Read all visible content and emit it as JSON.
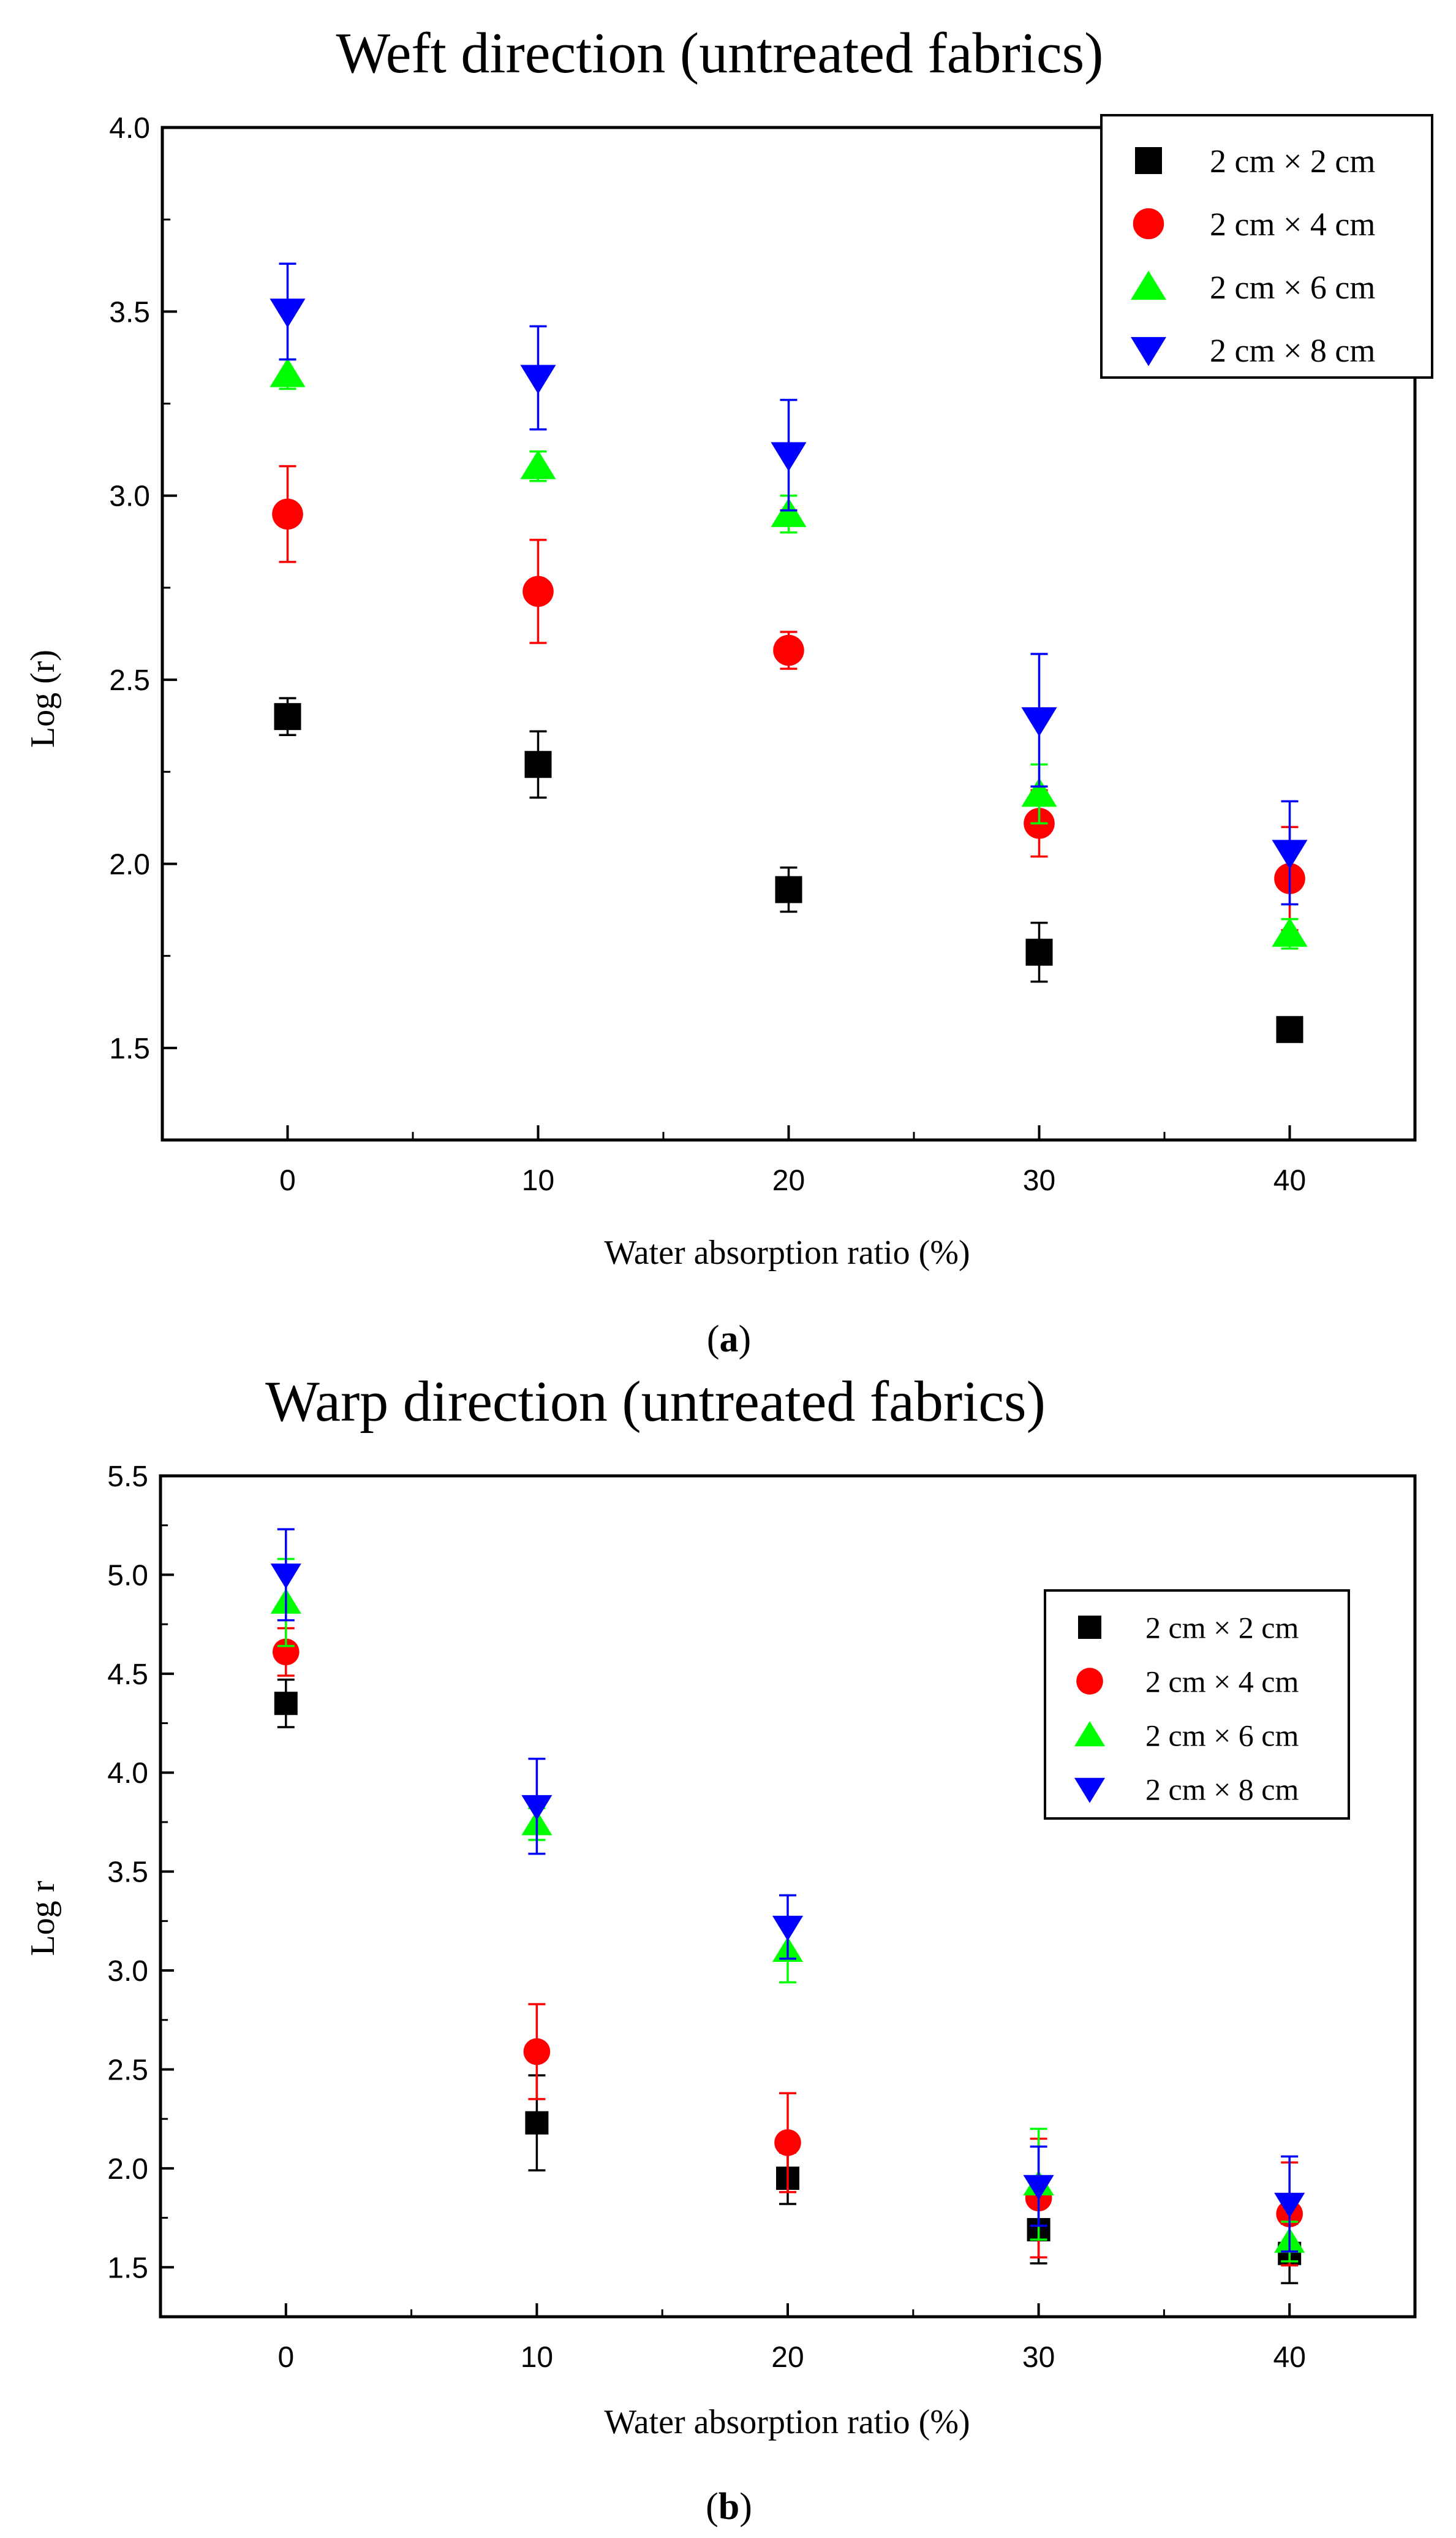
{
  "chart_data": [
    {
      "type": "scatter",
      "title": "Weft direction (untreated fabrics)",
      "xlabel": "Water absorption ratio (%)",
      "ylabel": "Log (r)",
      "caption_letter": "a",
      "x": [
        0,
        10,
        20,
        30,
        40
      ],
      "xlim": [
        -5,
        45
      ],
      "ylim": [
        1.25,
        4.0
      ],
      "xticks": [
        "0",
        "10",
        "20",
        "30",
        "40"
      ],
      "yticks": [
        "1.5",
        "2.0",
        "2.5",
        "3.0",
        "3.5",
        "4.0"
      ],
      "legend_position": "top-right",
      "series": [
        {
          "name": "2 cm × 2 cm",
          "marker": "square",
          "color": "#000000",
          "values": [
            2.4,
            2.27,
            1.93,
            1.76,
            1.55
          ],
          "errors": [
            0.05,
            0.09,
            0.06,
            0.08,
            0.03
          ]
        },
        {
          "name": "2 cm × 4 cm",
          "marker": "circle",
          "color": "#ff0000",
          "values": [
            2.95,
            2.74,
            2.58,
            2.11,
            1.96
          ],
          "errors": [
            0.13,
            0.14,
            0.05,
            0.09,
            0.14
          ]
        },
        {
          "name": "2 cm × 6 cm",
          "marker": "triangle-up",
          "color": "#00ff00",
          "values": [
            3.33,
            3.08,
            2.95,
            2.19,
            1.81
          ],
          "errors": [
            0.04,
            0.04,
            0.05,
            0.08,
            0.04
          ]
        },
        {
          "name": "2 cm × 8 cm",
          "marker": "triangle-down",
          "color": "#0000ff",
          "values": [
            3.5,
            3.32,
            3.11,
            2.39,
            2.03
          ],
          "errors": [
            0.13,
            0.14,
            0.15,
            0.18,
            0.14
          ]
        }
      ]
    },
    {
      "type": "scatter",
      "title": "Warp direction (untreated fabrics)",
      "xlabel": "Water absorption ratio (%)",
      "ylabel": "Log r",
      "caption_letter": "b",
      "x": [
        0,
        10,
        20,
        30,
        40
      ],
      "xlim": [
        -5,
        45
      ],
      "ylim": [
        1.25,
        5.5
      ],
      "xticks": [
        "0",
        "10",
        "20",
        "30",
        "40"
      ],
      "yticks": [
        "1.5",
        "2.0",
        "2.5",
        "3.0",
        "3.5",
        "4.0",
        "4.5",
        "5.0",
        "5.5"
      ],
      "legend_position": "top-right",
      "series": [
        {
          "name": "2 cm × 2 cm",
          "marker": "square",
          "color": "#000000",
          "values": [
            4.35,
            2.23,
            1.95,
            1.69,
            1.57
          ],
          "errors": [
            0.12,
            0.24,
            0.13,
            0.17,
            0.15
          ]
        },
        {
          "name": "2 cm × 4 cm",
          "marker": "circle",
          "color": "#ff0000",
          "values": [
            4.61,
            2.59,
            2.13,
            1.85,
            1.77
          ],
          "errors": [
            0.12,
            0.24,
            0.25,
            0.3,
            0.26
          ]
        },
        {
          "name": "2 cm × 6 cm",
          "marker": "triangle-up",
          "color": "#00ff00",
          "values": [
            4.86,
            3.74,
            3.1,
            1.92,
            1.63
          ],
          "errors": [
            0.22,
            0.08,
            0.16,
            0.28,
            0.1
          ]
        },
        {
          "name": "2 cm × 8 cm",
          "marker": "triangle-down",
          "color": "#0000ff",
          "values": [
            5.0,
            3.83,
            3.22,
            1.91,
            1.82
          ],
          "errors": [
            0.23,
            0.24,
            0.16,
            0.2,
            0.24
          ]
        }
      ]
    }
  ]
}
